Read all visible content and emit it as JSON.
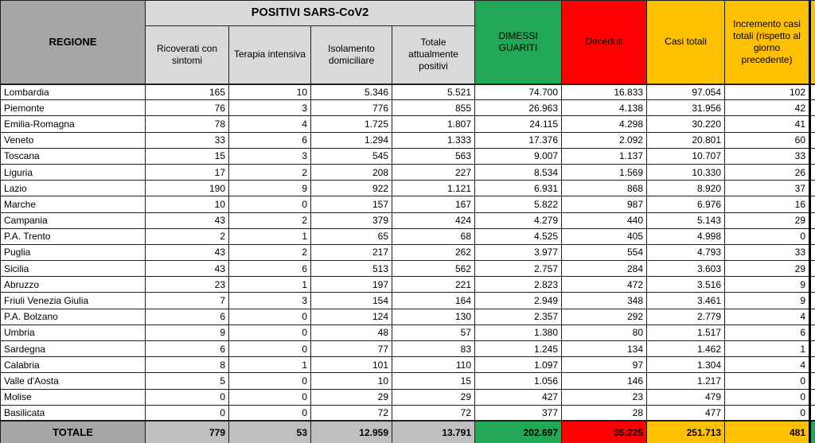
{
  "table": {
    "header": {
      "regione": "REGIONE",
      "positivi_group": "POSITIVI SARS-CoV2",
      "sub_columns": [
        "Ricoverati con sintomi",
        "Terapia intensiva",
        "Isolamento domiciliare",
        "Totale attualmente positivi"
      ],
      "dimessi_guariti": "DIMESSI GUARITI",
      "deceduti": "Deceduti",
      "casi_totali": "Casi totali",
      "incremento": "Incremento casi totali (rispetto al giorno precedente)"
    },
    "rows": [
      {
        "regione": "Lombardia",
        "values": [
          "165",
          "10",
          "5.346",
          "5.521",
          "74.700",
          "16.833",
          "97.054",
          "102"
        ]
      },
      {
        "regione": "Piemonte",
        "values": [
          "76",
          "3",
          "776",
          "855",
          "26.963",
          "4.138",
          "31.956",
          "42"
        ]
      },
      {
        "regione": "Emilia-Romagna",
        "values": [
          "78",
          "4",
          "1.725",
          "1.807",
          "24.115",
          "4.298",
          "30.220",
          "41"
        ]
      },
      {
        "regione": "Veneto",
        "values": [
          "33",
          "6",
          "1.294",
          "1.333",
          "17.376",
          "2.092",
          "20.801",
          "60"
        ]
      },
      {
        "regione": "Toscana",
        "values": [
          "15",
          "3",
          "545",
          "563",
          "9.007",
          "1.137",
          "10.707",
          "33"
        ]
      },
      {
        "regione": "Liguria",
        "values": [
          "17",
          "2",
          "208",
          "227",
          "8.534",
          "1.569",
          "10.330",
          "26"
        ]
      },
      {
        "regione": "Lazio",
        "values": [
          "190",
          "9",
          "922",
          "1.121",
          "6.931",
          "868",
          "8.920",
          "37"
        ]
      },
      {
        "regione": "Marche",
        "values": [
          "10",
          "0",
          "157",
          "167",
          "5.822",
          "987",
          "6.976",
          "16"
        ]
      },
      {
        "regione": "Campania",
        "values": [
          "43",
          "2",
          "379",
          "424",
          "4.279",
          "440",
          "5.143",
          "29"
        ]
      },
      {
        "regione": "P.A. Trento",
        "values": [
          "2",
          "1",
          "65",
          "68",
          "4.525",
          "405",
          "4.998",
          "0"
        ]
      },
      {
        "regione": "Puglia",
        "values": [
          "43",
          "2",
          "217",
          "262",
          "3.977",
          "554",
          "4.793",
          "33"
        ]
      },
      {
        "regione": "Sicilia",
        "values": [
          "43",
          "6",
          "513",
          "562",
          "2.757",
          "284",
          "3.603",
          "29"
        ]
      },
      {
        "regione": "Abruzzo",
        "values": [
          "23",
          "1",
          "197",
          "221",
          "2.823",
          "472",
          "3.516",
          "9"
        ]
      },
      {
        "regione": "Friuli Venezia Giulia",
        "values": [
          "7",
          "3",
          "154",
          "164",
          "2.949",
          "348",
          "3.461",
          "9"
        ]
      },
      {
        "regione": "P.A. Bolzano",
        "values": [
          "6",
          "0",
          "124",
          "130",
          "2.357",
          "292",
          "2.779",
          "4"
        ]
      },
      {
        "regione": "Umbria",
        "values": [
          "9",
          "0",
          "48",
          "57",
          "1.380",
          "80",
          "1.517",
          "6"
        ]
      },
      {
        "regione": "Sardegna",
        "values": [
          "6",
          "0",
          "77",
          "83",
          "1.245",
          "134",
          "1.462",
          "1"
        ]
      },
      {
        "regione": "Calabria",
        "values": [
          "8",
          "1",
          "101",
          "110",
          "1.097",
          "97",
          "1.304",
          "4"
        ]
      },
      {
        "regione": "Valle d'Aosta",
        "values": [
          "5",
          "0",
          "10",
          "15",
          "1.056",
          "146",
          "1.217",
          "0"
        ]
      },
      {
        "regione": "Molise",
        "values": [
          "0",
          "0",
          "29",
          "29",
          "427",
          "23",
          "479",
          "0"
        ]
      },
      {
        "regione": "Basilicata",
        "values": [
          "0",
          "0",
          "72",
          "72",
          "377",
          "28",
          "477",
          "0"
        ]
      }
    ],
    "totale": {
      "label": "TOTALE",
      "values": [
        "779",
        "53",
        "12.959",
        "13.791",
        "202.697",
        "35.225",
        "251.713",
        "481"
      ]
    }
  },
  "colors": {
    "header_gray": "#a6a6a6",
    "subheader_gray": "#d9d9d9",
    "green": "#21a857",
    "red": "#fe0000",
    "gold": "#ffc000",
    "totale_gray": "#bfbfbf",
    "grid": "#1f1f1f"
  }
}
